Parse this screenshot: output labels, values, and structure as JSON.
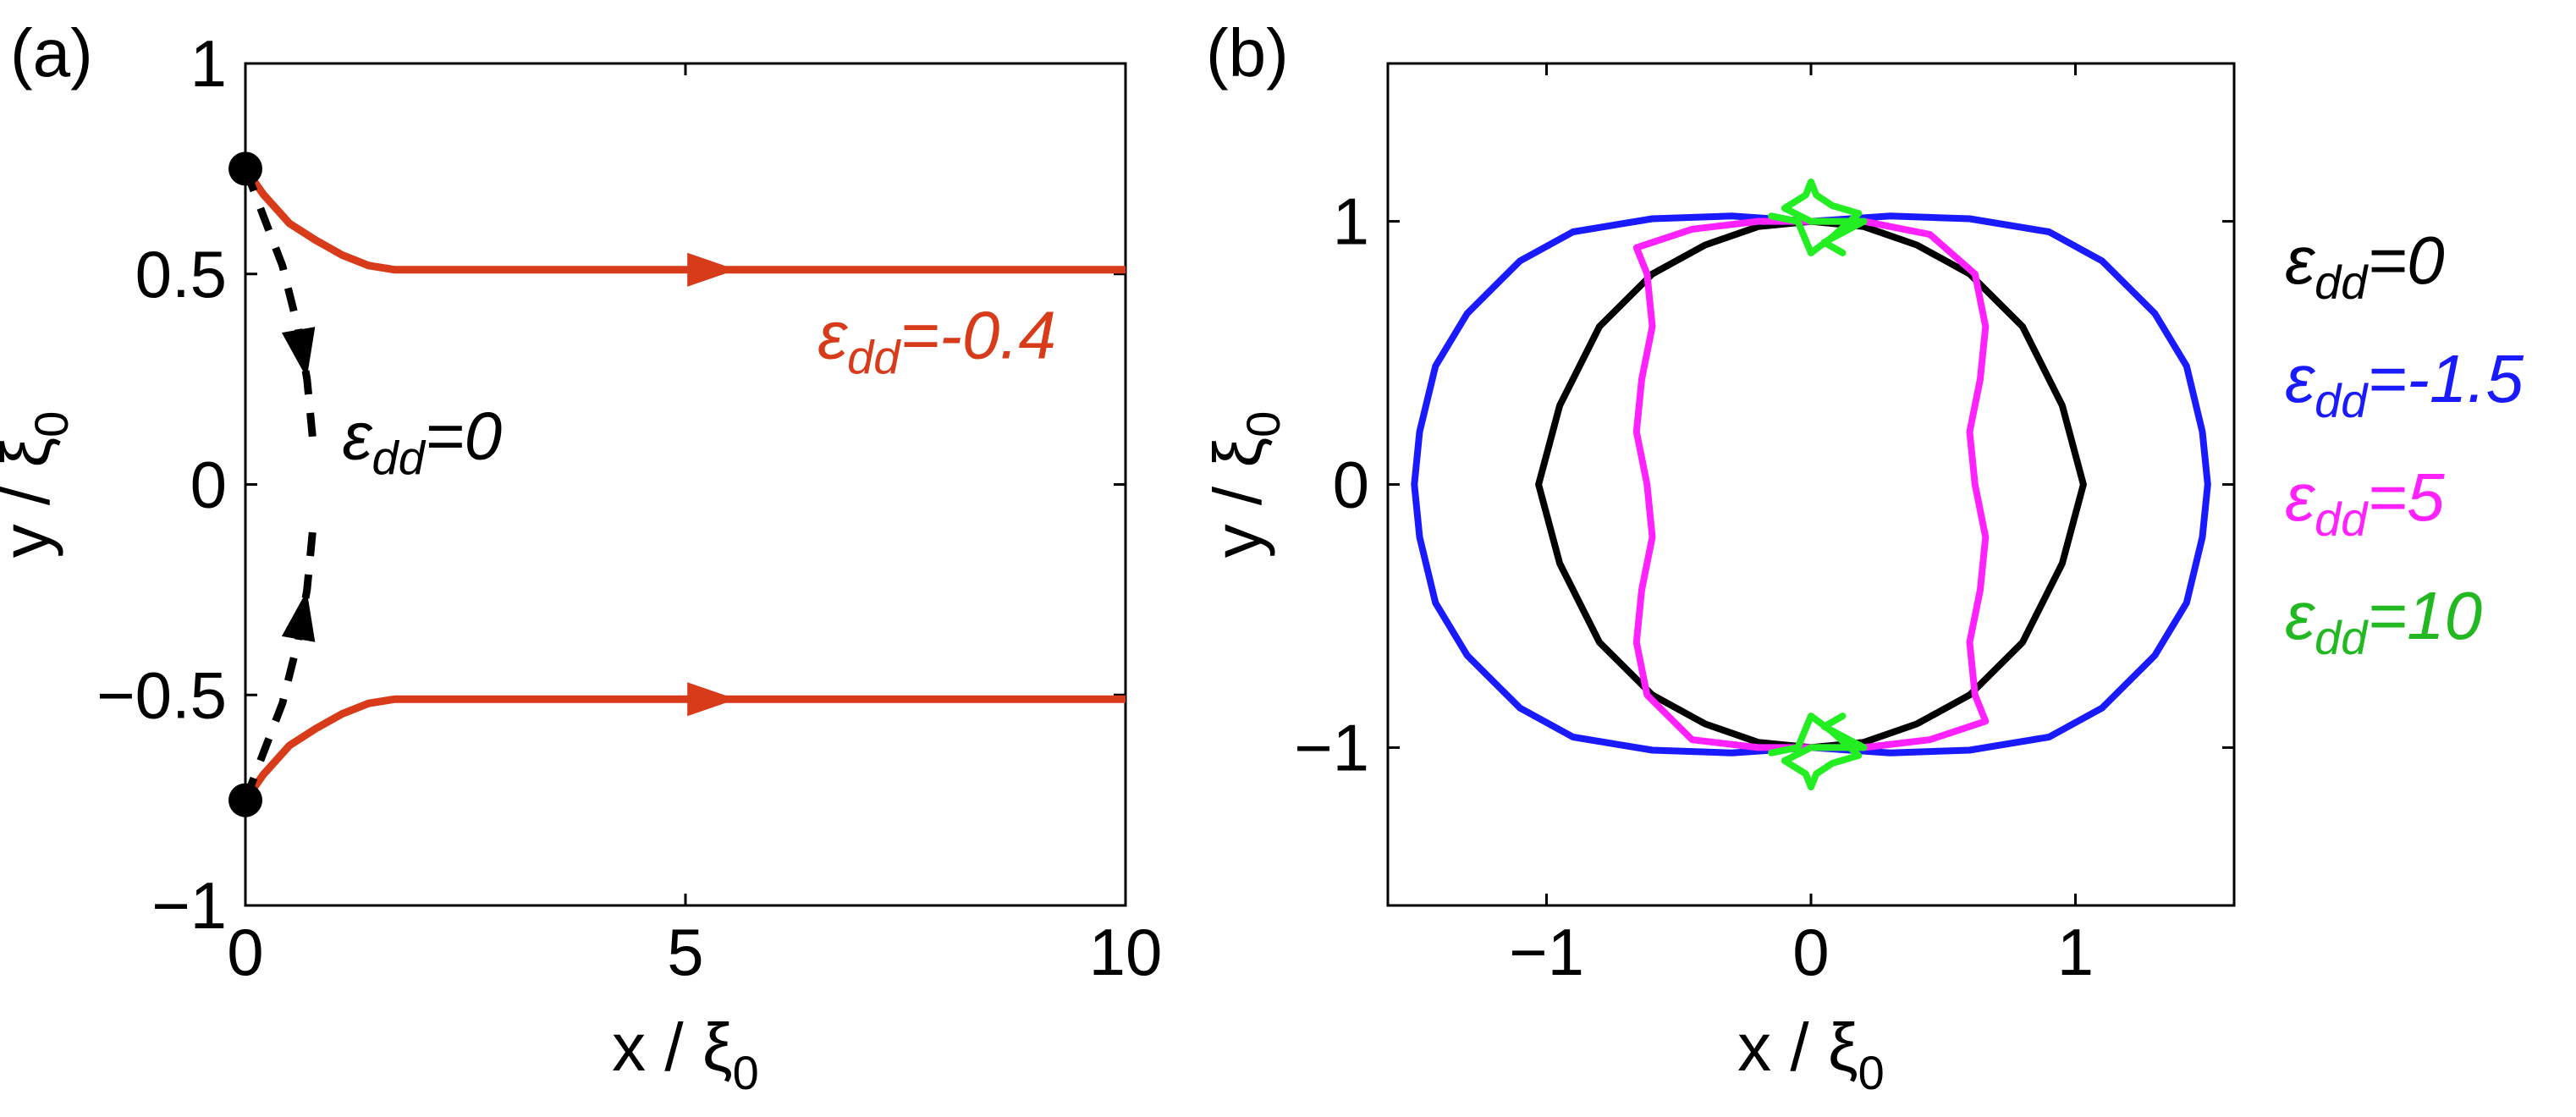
{
  "chart_data": [
    {
      "type": "line",
      "panel_label": "(a)",
      "xlabel": "x / ξ",
      "xlabel_sub": "0",
      "ylabel": "y / ξ",
      "ylabel_sub": "0",
      "xlim": [
        0,
        10
      ],
      "ylim": [
        -1,
        1
      ],
      "xticks": [
        0,
        5,
        10
      ],
      "xtick_labels": [
        "0",
        "5",
        "10"
      ],
      "yticks": [
        -1,
        -0.5,
        0,
        0.5,
        1
      ],
      "ytick_labels": [
        "−1",
        "−0.5",
        "0",
        "0.5",
        "1"
      ],
      "grid": false,
      "start_points": [
        [
          0,
          0.75
        ],
        [
          0,
          -0.75
        ]
      ],
      "series": [
        {
          "color": "#d83b1a",
          "style": "solid",
          "arrow_at_x": 5.3,
          "x": [
            0,
            0.2,
            0.5,
            0.8,
            1.1,
            1.4,
            1.7,
            2.2,
            3,
            5,
            7,
            10
          ],
          "y": [
            0.75,
            0.69,
            0.62,
            0.58,
            0.545,
            0.52,
            0.51,
            0.51,
            0.51,
            0.51,
            0.51,
            0.51
          ]
        },
        {
          "color": "#d83b1a",
          "style": "solid",
          "arrow_at_x": 5.3,
          "x": [
            0,
            0.2,
            0.5,
            0.8,
            1.1,
            1.4,
            1.7,
            2.2,
            3,
            5,
            7,
            10
          ],
          "y": [
            -0.75,
            -0.69,
            -0.62,
            -0.58,
            -0.545,
            -0.52,
            -0.51,
            -0.51,
            -0.51,
            -0.51,
            -0.51,
            -0.51
          ]
        },
        {
          "color": "#000000",
          "style": "dashed",
          "arrow_at_index": 3,
          "x": [
            0,
            0.2,
            0.42,
            0.6,
            0.7,
            0.76,
            0.78
          ],
          "y": [
            0.75,
            0.64,
            0.52,
            0.37,
            0.25,
            0.12,
            0.07
          ]
        },
        {
          "color": "#000000",
          "style": "dashed",
          "arrow_at_index": 3,
          "x": [
            0,
            0.2,
            0.42,
            0.6,
            0.7,
            0.76,
            0.78
          ],
          "y": [
            -0.75,
            -0.64,
            -0.52,
            -0.37,
            -0.25,
            -0.12,
            -0.07
          ]
        }
      ],
      "annotations": [
        {
          "eps": "ε",
          "sub": "dd",
          "value": "=-0.4",
          "color": "#d83b1a",
          "x": 6.5,
          "y": 0.3
        },
        {
          "eps": "ε",
          "sub": "dd",
          "value": "=0",
          "color": "#000000",
          "x": 1.1,
          "y": 0.06
        }
      ]
    },
    {
      "type": "line",
      "panel_label": "(b)",
      "xlabel": "x / ξ",
      "xlabel_sub": "0",
      "ylabel": "y / ξ",
      "ylabel_sub": "0",
      "xlim": [
        -1.6,
        1.6
      ],
      "ylim": [
        -1.6,
        1.6
      ],
      "xticks": [
        -1,
        0,
        1
      ],
      "xtick_labels": [
        "−1",
        "0",
        "1"
      ],
      "yticks": [
        -1,
        0,
        1
      ],
      "ytick_labels": [
        "−1",
        "0",
        "1"
      ],
      "grid": false,
      "series": [
        {
          "color": "#000000",
          "x": [
            0,
            0.2,
            0.4,
            0.6,
            0.8,
            0.95,
            1.03,
            0.95,
            0.8,
            0.6,
            0.4,
            0.2,
            0,
            -0.2,
            -0.4,
            -0.6,
            -0.8,
            -0.95,
            -1.03,
            -0.95,
            -0.8,
            -0.6,
            -0.4,
            -0.2,
            0
          ],
          "y": [
            1,
            0.98,
            0.91,
            0.8,
            0.6,
            0.3,
            0,
            -0.3,
            -0.6,
            -0.8,
            -0.91,
            -0.98,
            -1,
            -0.98,
            -0.91,
            -0.8,
            -0.6,
            -0.3,
            0,
            0.3,
            0.6,
            0.8,
            0.91,
            0.98,
            1
          ]
        },
        {
          "color": "#1a1aff",
          "x": [
            0,
            0.3,
            0.6,
            0.9,
            1.1,
            1.3,
            1.42,
            1.48,
            1.5,
            1.48,
            1.42,
            1.3,
            1.1,
            0.9,
            0.6,
            0.3,
            0,
            -0.3,
            -0.6,
            -0.9,
            -1.1,
            -1.3,
            -1.42,
            -1.48,
            -1.5,
            -1.48,
            -1.42,
            -1.3,
            -1.1,
            -0.9,
            -0.6,
            -0.3,
            0
          ],
          "y": [
            1,
            1.02,
            1.01,
            0.96,
            0.85,
            0.65,
            0.45,
            0.2,
            0,
            -0.2,
            -0.45,
            -0.65,
            -0.85,
            -0.96,
            -1.01,
            -1.02,
            -1,
            -1.02,
            -1.01,
            -0.96,
            -0.85,
            -0.65,
            -0.45,
            -0.2,
            0,
            0.2,
            0.45,
            0.65,
            0.85,
            0.96,
            1.01,
            1.02,
            1
          ]
        },
        {
          "color": "#ff22ff",
          "x": [
            0,
            0.2,
            0.45,
            0.62,
            0.66,
            0.64,
            0.6,
            0.62,
            0.66,
            0.64,
            0.6,
            0.62,
            0.66,
            0.45,
            0.2,
            0,
            -0.2,
            -0.45,
            -0.62,
            -0.66,
            -0.64,
            -0.6,
            -0.62,
            -0.66,
            -0.64,
            -0.6,
            -0.62,
            -0.66,
            -0.45,
            -0.2,
            0
          ],
          "y": [
            1,
            1,
            0.95,
            0.8,
            0.6,
            0.4,
            0.2,
            0,
            -0.2,
            -0.4,
            -0.6,
            -0.8,
            -0.9,
            -0.97,
            -1,
            -1,
            -1,
            -0.97,
            -0.8,
            -0.6,
            -0.4,
            -0.2,
            0,
            0.2,
            0.4,
            0.6,
            0.8,
            0.9,
            0.97,
            1,
            1
          ]
        },
        {
          "color": "#22ee22",
          "x": [
            -0.15,
            -0.05,
            0,
            0.08,
            0.18,
            0.08,
            0.02,
            0.0,
            -0.02,
            -0.1,
            0,
            0.2,
            0.05,
            0.12
          ],
          "y": [
            1.02,
            1.0,
            0.88,
            0.94,
            1.03,
            1.06,
            1.1,
            1.15,
            1.1,
            1.05,
            1.0,
            1.0,
            0.92,
            0.88
          ]
        },
        {
          "color": "#22ee22",
          "x": [
            -0.15,
            -0.05,
            0,
            0.08,
            0.18,
            0.08,
            0.02,
            0.0,
            -0.02,
            -0.1,
            0,
            0.2,
            0.05,
            0.12
          ],
          "y": [
            -1.02,
            -1.0,
            -0.88,
            -0.94,
            -1.03,
            -1.06,
            -1.1,
            -1.15,
            -1.1,
            -1.05,
            -1.0,
            -1.0,
            -0.92,
            -0.88
          ]
        }
      ],
      "legend": {
        "placement": "right",
        "entries": [
          {
            "eps": "ε",
            "sub": "dd",
            "value": "=0",
            "color": "#000000"
          },
          {
            "eps": "ε",
            "sub": "dd",
            "value": "=-1.5",
            "color": "#1a1aff"
          },
          {
            "eps": "ε",
            "sub": "dd",
            "value": "=5",
            "color": "#ff22ff"
          },
          {
            "eps": "ε",
            "sub": "dd",
            "value": "=10",
            "color": "#22b822"
          }
        ]
      }
    }
  ]
}
